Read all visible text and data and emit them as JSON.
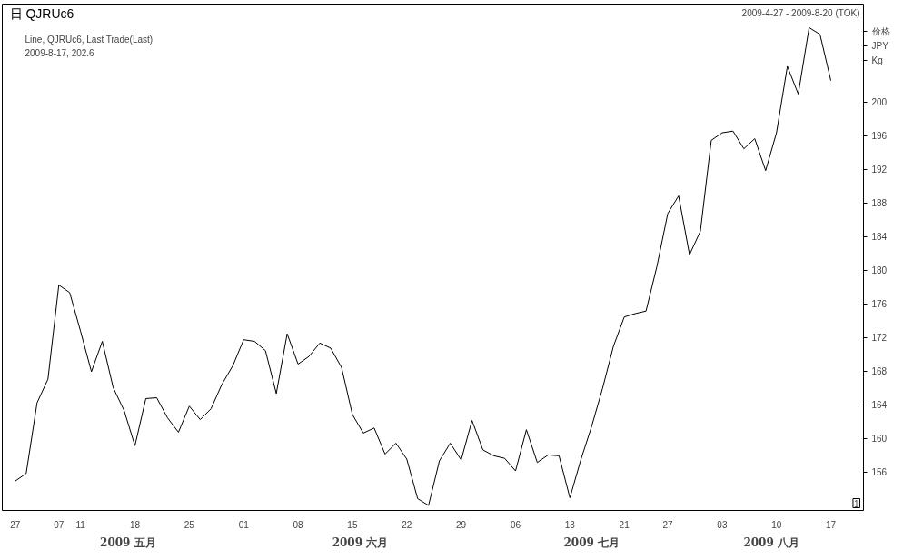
{
  "chart_data": {
    "type": "line",
    "title": "日 QJRUc6",
    "subtitle": "Line, QJRUc6, Last Trade(Last)",
    "ylabel": "价格 JPY Kg",
    "annotations": [
      "2009-8-17, 202.6",
      "2009-4-27 - 2009-8-20 (TOK)",
      "2009 五月",
      "2009 六月",
      "2009 七月",
      "2009 八月",
      "1"
    ],
    "categories": [
      "27",
      null,
      null,
      null,
      "07",
      null,
      "11",
      null,
      null,
      null,
      null,
      "18",
      null,
      null,
      null,
      null,
      "25",
      null,
      null,
      null,
      null,
      "01",
      null,
      null,
      null,
      null,
      "08",
      null,
      null,
      null,
      null,
      "15",
      null,
      null,
      null,
      null,
      "22",
      null,
      null,
      null,
      null,
      "29",
      null,
      null,
      null,
      null,
      "06",
      null,
      null,
      null,
      null,
      "13",
      null,
      null,
      null,
      null,
      "21",
      null,
      null,
      null,
      "27",
      null,
      null,
      null,
      null,
      "03",
      null,
      null,
      null,
      null,
      "10",
      null,
      null,
      null,
      null,
      "17"
    ],
    "series": [
      {
        "color": "#000000",
        "values": [
          155.0,
          155.9,
          164.3,
          167.1,
          178.3,
          177.4,
          172.8,
          168.0,
          171.6,
          166.1,
          163.4,
          159.2,
          164.8,
          164.9,
          162.5,
          160.8,
          163.9,
          162.3,
          163.6,
          166.5,
          168.7,
          171.8,
          171.6,
          170.5,
          165.4,
          172.5,
          168.9,
          169.8,
          171.4,
          170.8,
          168.5,
          162.9,
          160.7,
          161.3,
          158.2,
          159.5,
          157.6,
          152.9,
          152.1,
          157.4,
          159.5,
          157.5,
          162.2,
          158.7,
          158.0,
          157.7,
          156.2,
          161.1,
          157.2,
          158.1,
          158.0,
          153.0,
          157.5,
          161.5,
          166.0,
          171.0,
          174.5,
          174.9,
          175.2,
          180.5,
          186.8,
          188.9,
          181.9,
          184.7,
          195.5,
          196.4,
          196.6,
          194.5,
          195.7,
          191.9,
          196.4,
          204.3,
          201.0,
          208.9,
          208.1,
          202.6
        ]
      }
    ],
    "ylim": [
      151.5,
      211.7
    ],
    "yticks": [
      156,
      160,
      164,
      168,
      172,
      176,
      180,
      184,
      188,
      192,
      196,
      200
    ],
    "grid": false
  }
}
